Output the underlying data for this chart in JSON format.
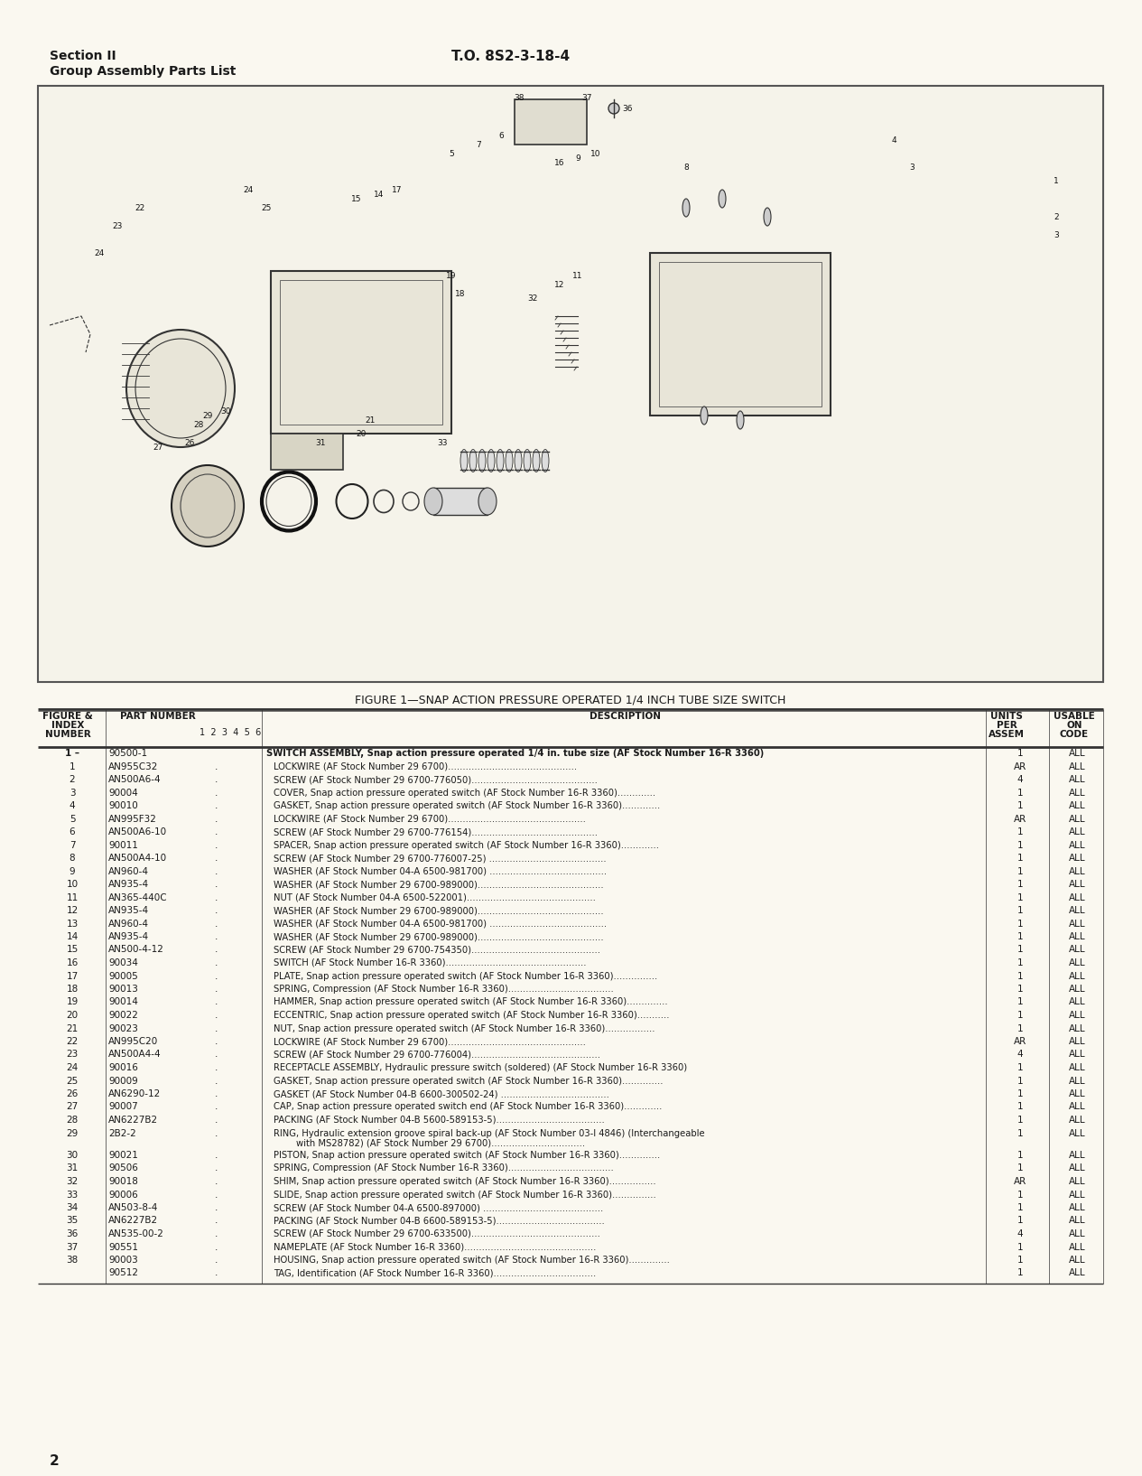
{
  "page_bg": "#faf8f0",
  "header_left_line1": "Section II",
  "header_left_line2": "Group Assembly Parts List",
  "header_right": "T.O. 8S2-3-18-4",
  "figure_caption": "FIGURE 1—SNAP ACTION PRESSURE OPERATED 1/4 INCH TUBE SIZE SWITCH",
  "table_headers": [
    "FIGURE &\nINDEX\nNUMBER",
    "PART NUMBER",
    "1  2  3  4  5  6",
    "DESCRIPTION",
    "UNITS\nPER\nASSEM",
    "USABLE\nON\nCODE"
  ],
  "rows": [
    [
      "1 –",
      "90500-1",
      "",
      "SWITCH ASSEMBLY, Snap action pressure operated 1/4 in. tube size (AF Stock Number 16-R 3360)",
      "1",
      "ALL"
    ],
    [
      "1",
      "AN955C32",
      ".",
      "LOCKWIRE (AF Stock Number 29 6700)............................................",
      "AR",
      "ALL"
    ],
    [
      "2",
      "AN500A6-4",
      ".",
      "SCREW (AF Stock Number 29 6700-776050)...........................................",
      "4",
      "ALL"
    ],
    [
      "3",
      "90004",
      ".",
      "COVER, Snap action pressure operated switch (AF Stock Number 16-R 3360).............",
      "1",
      "ALL"
    ],
    [
      "4",
      "90010",
      ".",
      "GASKET, Snap action pressure operated switch (AF Stock Number 16-R 3360).............",
      "1",
      "ALL"
    ],
    [
      "5",
      "AN995F32",
      ".",
      "LOCKWIRE (AF Stock Number 29 6700)...............................................",
      "AR",
      "ALL"
    ],
    [
      "6",
      "AN500A6-10",
      ".",
      "SCREW (AF Stock Number 29 6700-776154)...........................................",
      "1",
      "ALL"
    ],
    [
      "7",
      "90011",
      ".",
      "SPACER, Snap action pressure operated switch (AF Stock Number 16-R 3360).............",
      "1",
      "ALL"
    ],
    [
      "8",
      "AN500A4-10",
      ".",
      "SCREW (AF Stock Number 29 6700-776007-25) ........................................",
      "1",
      "ALL"
    ],
    [
      "9",
      "AN960-4",
      ".",
      "WASHER (AF Stock Number 04-A 6500-981700) ........................................",
      "1",
      "ALL"
    ],
    [
      "10",
      "AN935-4",
      ".",
      "WASHER (AF Stock Number 29 6700-989000)...........................................",
      "1",
      "ALL"
    ],
    [
      "11",
      "AN365-440C",
      ".",
      "NUT (AF Stock Number 04-A 6500-522001)............................................",
      "1",
      "ALL"
    ],
    [
      "12",
      "AN935-4",
      ".",
      "WASHER (AF Stock Number 29 6700-989000)...........................................",
      "1",
      "ALL"
    ],
    [
      "13",
      "AN960-4",
      ".",
      "WASHER (AF Stock Number 04-A 6500-981700) ........................................",
      "1",
      "ALL"
    ],
    [
      "14",
      "AN935-4",
      ".",
      "WASHER (AF Stock Number 29 6700-989000)...........................................",
      "1",
      "ALL"
    ],
    [
      "15",
      "AN500-4-12",
      ".",
      "SCREW (AF Stock Number 29 6700-754350)............................................",
      "1",
      "ALL"
    ],
    [
      "16",
      "90034",
      ".",
      "SWITCH (AF Stock Number 16-R 3360)................................................",
      "1",
      "ALL"
    ],
    [
      "17",
      "90005",
      ".",
      "PLATE, Snap action pressure operated switch (AF Stock Number 16-R 3360)...............",
      "1",
      "ALL"
    ],
    [
      "18",
      "90013",
      ".",
      "SPRING, Compression (AF Stock Number 16-R 3360)....................................",
      "1",
      "ALL"
    ],
    [
      "19",
      "90014",
      ".",
      "HAMMER, Snap action pressure operated switch (AF Stock Number 16-R 3360)..............",
      "1",
      "ALL"
    ],
    [
      "20",
      "90022",
      ".",
      "ECCENTRIC, Snap action pressure operated switch (AF Stock Number 16-R 3360)...........",
      "1",
      "ALL"
    ],
    [
      "21",
      "90023",
      ".",
      "NUT, Snap action pressure operated switch (AF Stock Number 16-R 3360).................",
      "1",
      "ALL"
    ],
    [
      "22",
      "AN995C20",
      ".",
      "LOCKWIRE (AF Stock Number 29 6700)...............................................",
      "AR",
      "ALL"
    ],
    [
      "23",
      "AN500A4-4",
      ".",
      "SCREW (AF Stock Number 29 6700-776004)............................................",
      "4",
      "ALL"
    ],
    [
      "24",
      "90016",
      ".",
      "RECEPTACLE ASSEMBLY, Hydraulic pressure switch (soldered) (AF Stock Number 16-R 3360)",
      "1",
      "ALL"
    ],
    [
      "25",
      "90009",
      ".",
      "GASKET, Snap action pressure operated switch (AF Stock Number 16-R 3360)..............",
      "1",
      "ALL"
    ],
    [
      "26",
      "AN6290-12",
      ".",
      "GASKET (AF Stock Number 04-B 6600-300502-24) .....................................",
      "1",
      "ALL"
    ],
    [
      "27",
      "90007",
      ".",
      "CAP, Snap action pressure operated switch end (AF Stock Number 16-R 3360).............",
      "1",
      "ALL"
    ],
    [
      "28",
      "AN6227B2",
      ".",
      "PACKING (AF Stock Number 04-B 5600-589153-5).....................................",
      "1",
      "ALL"
    ],
    [
      "29",
      "2B2-2",
      ".",
      "RING, Hydraulic extension groove spiral back-up (AF Stock Number 03-I 4846) (Interchangeable\n        with MS28782) (AF Stock Number 29 6700)................................",
      "1",
      "ALL"
    ],
    [
      "30",
      "90021",
      ".",
      "PISTON, Snap action pressure operated switch (AF Stock Number 16-R 3360)..............",
      "1",
      "ALL"
    ],
    [
      "31",
      "90506",
      ".",
      "SPRING, Compression (AF Stock Number 16-R 3360)....................................",
      "1",
      "ALL"
    ],
    [
      "32",
      "90018",
      ".",
      "SHIM, Snap action pressure operated switch (AF Stock Number 16-R 3360)................",
      "AR",
      "ALL"
    ],
    [
      "33",
      "90006",
      ".",
      "SLIDE, Snap action pressure operated switch (AF Stock Number 16-R 3360)...............",
      "1",
      "ALL"
    ],
    [
      "34",
      "AN503-8-4",
      ".",
      "SCREW (AF Stock Number 04-A 6500-897000) .........................................",
      "1",
      "ALL"
    ],
    [
      "35",
      "AN6227B2",
      ".",
      "PACKING (AF Stock Number 04-B 6600-589153-5).....................................",
      "1",
      "ALL"
    ],
    [
      "36",
      "AN535-00-2",
      ".",
      "SCREW (AF Stock Number 29 6700-633500)............................................",
      "4",
      "ALL"
    ],
    [
      "37",
      "90551",
      ".",
      "NAMEPLATE (AF Stock Number 16-R 3360).............................................",
      "1",
      "ALL"
    ],
    [
      "38",
      "90003",
      ".",
      "HOUSING, Snap action pressure operated switch (AF Stock Number 16-R 3360)..............",
      "1",
      "ALL"
    ],
    [
      "",
      "90512",
      ".",
      "TAG, Identification (AF Stock Number 16-R 3360)...................................",
      "1",
      "ALL"
    ]
  ],
  "footer_page": "2",
  "text_color": "#1a1a1a",
  "line_color": "#333333",
  "bg_color": "#faf8f0"
}
